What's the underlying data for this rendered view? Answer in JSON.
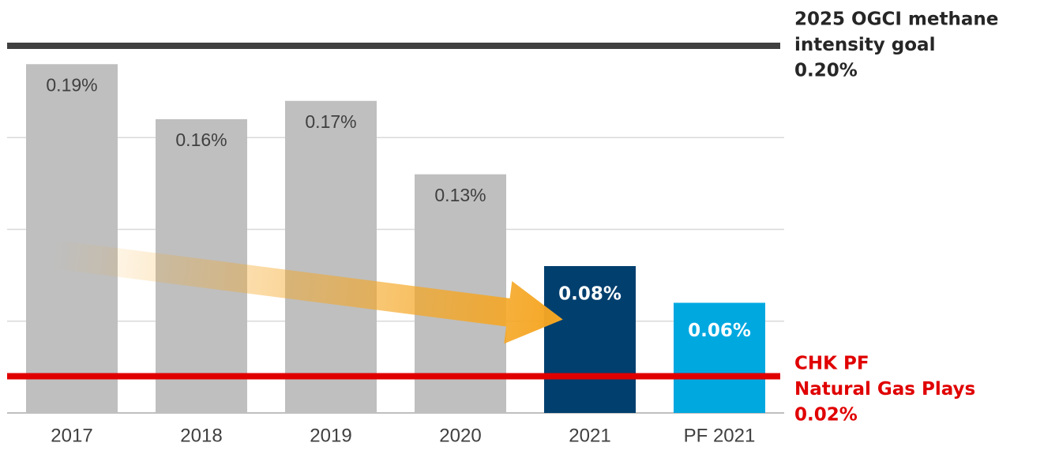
{
  "chart_data": {
    "type": "bar",
    "categories": [
      "2017",
      "2018",
      "2019",
      "2020",
      "2021",
      "PF 2021"
    ],
    "values": [
      0.19,
      0.16,
      0.17,
      0.13,
      0.08,
      0.06
    ],
    "value_labels": [
      "0.19%",
      "0.16%",
      "0.17%",
      "0.13%",
      "0.08%",
      "0.06%"
    ],
    "colors": [
      "#bfbfbf",
      "#bfbfbf",
      "#bfbfbf",
      "#bfbfbf",
      "#003f6e",
      "#00a8e0"
    ],
    "ylim": [
      0,
      0.2
    ],
    "yticks": [
      0,
      0.05,
      0.1,
      0.15
    ],
    "grid": true,
    "reference_lines": [
      {
        "text": [
          "2025 OGCI methane",
          "intensity goal"
        ],
        "value": 0.2,
        "value_label": "0.20%",
        "color": "#404040"
      },
      {
        "text": [
          "CHK PF",
          "Natural Gas Plays"
        ],
        "value": 0.02,
        "value_label": "0.02%",
        "color": "#e00000"
      }
    ]
  }
}
